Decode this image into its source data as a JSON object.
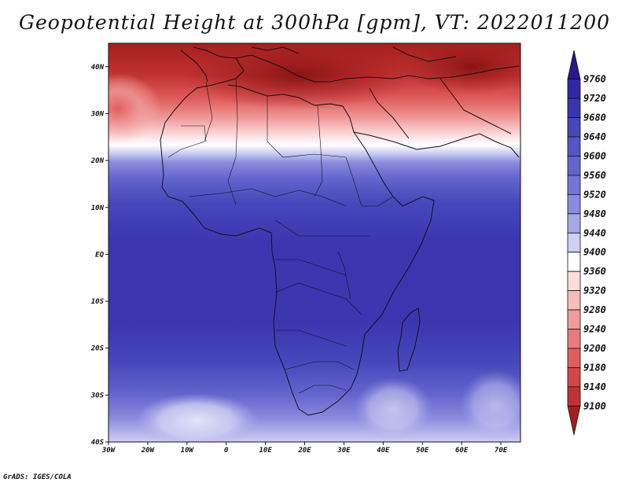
{
  "title": "Geopotential Height at 300hPa [gpm], VT: 2022011200",
  "credit": "GrADS: IGES/COLA",
  "map": {
    "lon_range": [
      -30,
      75
    ],
    "lat_range": [
      -40,
      45
    ],
    "lon_ticks": [
      "30W",
      "20W",
      "10W",
      "0",
      "10E",
      "20E",
      "30E",
      "40E",
      "50E",
      "60E",
      "70E"
    ],
    "lat_ticks": [
      "40S",
      "30S",
      "20S",
      "10S",
      "EQ",
      "10N",
      "20N",
      "30N",
      "40N"
    ]
  },
  "colorbar": {
    "levels": [
      "9760",
      "9720",
      "9680",
      "9640",
      "9600",
      "9560",
      "9520",
      "9480",
      "9440",
      "9400",
      "9360",
      "9320",
      "9280",
      "9240",
      "9200",
      "9180",
      "9140",
      "9100"
    ],
    "colors": [
      "#29188f",
      "#3227a3",
      "#3a36b0",
      "#4747bb",
      "#5556c4",
      "#6364cc",
      "#7475d4",
      "#8a8ade",
      "#a7a7e8",
      "#cfcff3",
      "#ffffff",
      "#fcdcdc",
      "#f7bcbc",
      "#f09c9c",
      "#e87b7b",
      "#e05d5d",
      "#d24646",
      "#c13232",
      "#a51f1f"
    ]
  },
  "chart_data": {
    "type": "heatmap",
    "title": "Geopotential Height at 300hPa [gpm], VT: 2022011200",
    "xlabel": "",
    "ylabel": "",
    "x_range": [
      -30,
      75
    ],
    "y_range": [
      -40,
      45
    ],
    "colorbar_levels": [
      9100,
      9140,
      9180,
      9200,
      9240,
      9280,
      9320,
      9360,
      9400,
      9440,
      9480,
      9520,
      9560,
      9600,
      9640,
      9680,
      9720,
      9760
    ],
    "summary_field": [
      {
        "lat": 40,
        "value": 9150
      },
      {
        "lat": 35,
        "value": 9250
      },
      {
        "lat": 30,
        "value": 9320
      },
      {
        "lat": 25,
        "value": 9380
      },
      {
        "lat": 20,
        "value": 9480
      },
      {
        "lat": 15,
        "value": 9560
      },
      {
        "lat": 10,
        "value": 9620
      },
      {
        "lat": 0,
        "value": 9660
      },
      {
        "lat": -10,
        "value": 9670
      },
      {
        "lat": -20,
        "value": 9660
      },
      {
        "lat": -30,
        "value": 9580
      },
      {
        "lat": -38,
        "value": 9440
      }
    ]
  }
}
